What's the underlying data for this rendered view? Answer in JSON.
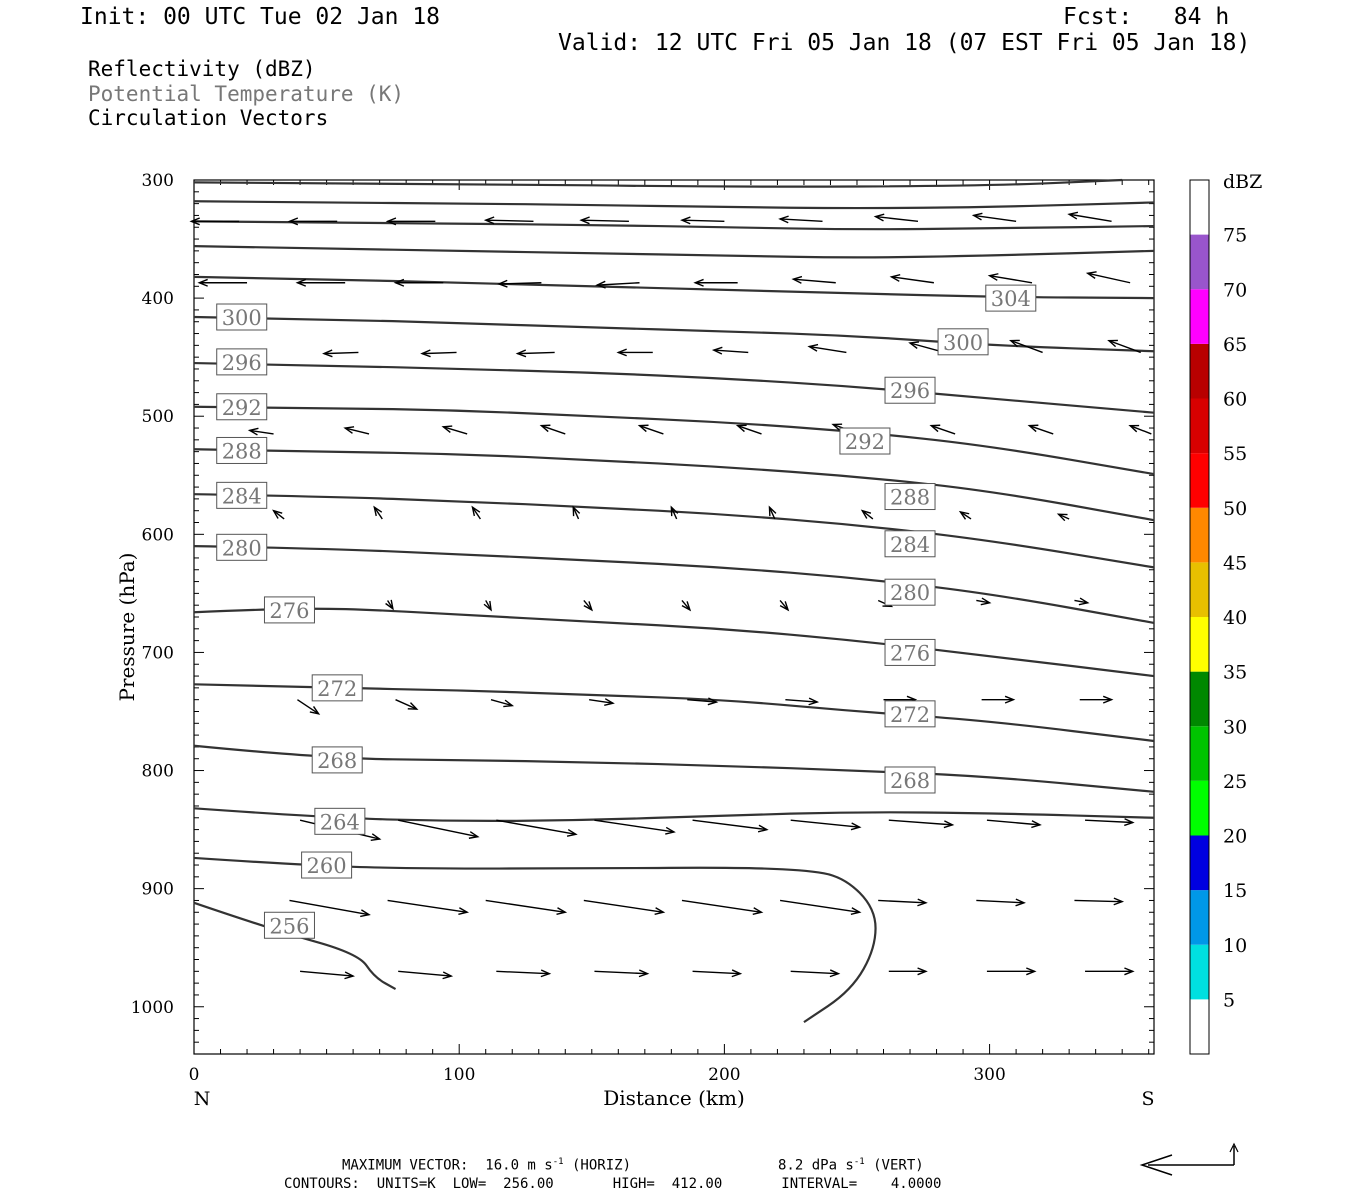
{
  "header": {
    "init": "Init: 00 UTC Tue 02 Jan 18",
    "fcst": "Fcst:   84 h",
    "valid": "Valid: 12 UTC Fri 05 Jan 18 (07 EST Fri 05 Jan 18)"
  },
  "fields": {
    "reflectivity": "Reflectivity (dBZ)",
    "theta": "Potential Temperature (K)",
    "vectors": "Circulation Vectors"
  },
  "footer": {
    "max_vector": "MAXIMUM VECTOR:  16.0 m s",
    "max_vector_sup": "-1",
    "horiz": " (HORIZ)",
    "vert_value": "8.2 dPa s",
    "vert_sup": "-1",
    "vert": " (VERT)",
    "contours": "CONTOURS:  UNITS=K  LOW=  256.00       HIGH=  412.00       INTERVAL=    4.0000"
  },
  "colors": {
    "contour": "#333333",
    "theta_label": "#777777",
    "axis": "#000000"
  },
  "chart_data": {
    "type": "line",
    "title": "",
    "xlabel": "Distance (km)",
    "ylabel": "Pressure (hPa)",
    "xlim": [
      0,
      362
    ],
    "ylim": [
      1040,
      300
    ],
    "x_ticks": [
      0,
      100,
      200,
      300
    ],
    "y_ticks": [
      300,
      400,
      500,
      600,
      700,
      800,
      900,
      1000
    ],
    "x_end_labels": {
      "left": "N",
      "right": "S"
    },
    "grid": false,
    "colorbar": {
      "unit": "dBZ",
      "labels": [
        "5",
        "10",
        "15",
        "20",
        "25",
        "30",
        "35",
        "40",
        "45",
        "50",
        "55",
        "60",
        "65",
        "70",
        "75"
      ],
      "colors": [
        "#00e0e0",
        "#0098e8",
        "#0000e0",
        "#00ff00",
        "#00c400",
        "#008800",
        "#ffff00",
        "#e8c000",
        "#ff8800",
        "#ff0000",
        "#d80000",
        "#b80000",
        "#ff00ff",
        "#9955cc"
      ]
    },
    "contours": [
      {
        "label": "256",
        "points": [
          [
            0,
            912
          ],
          [
            30,
            935
          ],
          [
            62,
            955
          ],
          [
            68,
            975
          ],
          [
            76,
            985
          ]
        ],
        "labels_at": [
          [
            36,
            931
          ]
        ]
      },
      {
        "label": "260",
        "points": [
          [
            0,
            874
          ],
          [
            40,
            880
          ],
          [
            80,
            883
          ],
          [
            150,
            883
          ],
          [
            200,
            882
          ],
          [
            230,
            884
          ],
          [
            245,
            890
          ],
          [
            257,
            917
          ],
          [
            257,
            950
          ],
          [
            248,
            986
          ],
          [
            230,
            1013
          ]
        ],
        "labels_at": [
          [
            50,
            880
          ]
        ]
      },
      {
        "label": "264",
        "points": [
          [
            0,
            832
          ],
          [
            50,
            840
          ],
          [
            100,
            843
          ],
          [
            150,
            842
          ],
          [
            200,
            838
          ],
          [
            250,
            835
          ],
          [
            300,
            836
          ],
          [
            362,
            840
          ]
        ],
        "labels_at": [
          [
            55,
            843
          ]
        ]
      },
      {
        "label": "268",
        "points": [
          [
            0,
            779
          ],
          [
            50,
            790
          ],
          [
            100,
            791
          ],
          [
            150,
            793
          ],
          [
            200,
            796
          ],
          [
            250,
            800
          ],
          [
            300,
            805
          ],
          [
            362,
            818
          ]
        ],
        "labels_at": [
          [
            54,
            791
          ],
          [
            270,
            808
          ]
        ]
      },
      {
        "label": "272",
        "points": [
          [
            0,
            727
          ],
          [
            50,
            730
          ],
          [
            100,
            732
          ],
          [
            150,
            736
          ],
          [
            200,
            740
          ],
          [
            250,
            750
          ],
          [
            300,
            758
          ],
          [
            362,
            775
          ]
        ],
        "labels_at": [
          [
            54,
            730
          ],
          [
            270,
            752
          ]
        ]
      },
      {
        "label": "276",
        "points": [
          [
            0,
            666
          ],
          [
            30,
            663
          ],
          [
            60,
            663
          ],
          [
            100,
            668
          ],
          [
            150,
            674
          ],
          [
            200,
            680
          ],
          [
            250,
            690
          ],
          [
            300,
            703
          ],
          [
            362,
            720
          ]
        ],
        "labels_at": [
          [
            36,
            664
          ],
          [
            270,
            700
          ]
        ]
      },
      {
        "label": "280",
        "points": [
          [
            0,
            610
          ],
          [
            50,
            612
          ],
          [
            100,
            617
          ],
          [
            150,
            622
          ],
          [
            200,
            628
          ],
          [
            250,
            637
          ],
          [
            300,
            650
          ],
          [
            362,
            675
          ]
        ],
        "labels_at": [
          [
            18,
            611
          ],
          [
            270,
            649
          ]
        ]
      },
      {
        "label": "284",
        "points": [
          [
            0,
            566
          ],
          [
            50,
            568
          ],
          [
            100,
            572
          ],
          [
            150,
            577
          ],
          [
            200,
            583
          ],
          [
            250,
            592
          ],
          [
            300,
            605
          ],
          [
            362,
            628
          ]
        ],
        "labels_at": [
          [
            18,
            567
          ],
          [
            270,
            608
          ]
        ]
      },
      {
        "label": "288",
        "points": [
          [
            0,
            528
          ],
          [
            50,
            530
          ],
          [
            100,
            532
          ],
          [
            150,
            537
          ],
          [
            200,
            543
          ],
          [
            250,
            551
          ],
          [
            300,
            563
          ],
          [
            362,
            588
          ]
        ],
        "labels_at": [
          [
            18,
            529
          ],
          [
            270,
            568
          ]
        ]
      },
      {
        "label": "292",
        "points": [
          [
            0,
            492
          ],
          [
            50,
            493
          ],
          [
            100,
            495
          ],
          [
            150,
            500
          ],
          [
            200,
            505
          ],
          [
            250,
            513
          ],
          [
            300,
            525
          ],
          [
            362,
            549
          ]
        ],
        "labels_at": [
          [
            18,
            492
          ],
          [
            253,
            521
          ]
        ]
      },
      {
        "label": "296",
        "points": [
          [
            0,
            455
          ],
          [
            50,
            457
          ],
          [
            100,
            460
          ],
          [
            150,
            463
          ],
          [
            200,
            468
          ],
          [
            250,
            475
          ],
          [
            300,
            485
          ],
          [
            362,
            497
          ]
        ],
        "labels_at": [
          [
            18,
            454
          ],
          [
            270,
            478
          ]
        ]
      },
      {
        "label": "300",
        "points": [
          [
            0,
            416
          ],
          [
            50,
            418
          ],
          [
            100,
            421
          ],
          [
            150,
            425
          ],
          [
            200,
            428
          ],
          [
            250,
            432
          ],
          [
            300,
            440
          ],
          [
            362,
            445
          ]
        ],
        "labels_at": [
          [
            18,
            416
          ],
          [
            290,
            437
          ]
        ]
      },
      {
        "label": "304",
        "points": [
          [
            0,
            382
          ],
          [
            50,
            384
          ],
          [
            100,
            387
          ],
          [
            150,
            390
          ],
          [
            200,
            393
          ],
          [
            250,
            396
          ],
          [
            300,
            399
          ],
          [
            362,
            400
          ]
        ],
        "labels_at": [
          [
            308,
            400
          ]
        ]
      },
      {
        "label": "",
        "points": [
          [
            0,
            356
          ],
          [
            50,
            358
          ],
          [
            100,
            360
          ],
          [
            150,
            362
          ],
          [
            200,
            364
          ],
          [
            250,
            366
          ],
          [
            300,
            364
          ],
          [
            362,
            360
          ]
        ],
        "labels_at": []
      },
      {
        "label": "",
        "points": [
          [
            0,
            335
          ],
          [
            50,
            336
          ],
          [
            100,
            337
          ],
          [
            150,
            338
          ],
          [
            200,
            340
          ],
          [
            250,
            342
          ],
          [
            300,
            341
          ],
          [
            362,
            339
          ]
        ],
        "labels_at": []
      },
      {
        "label": "",
        "points": [
          [
            0,
            318
          ],
          [
            50,
            319
          ],
          [
            100,
            320
          ],
          [
            150,
            321
          ],
          [
            200,
            323
          ],
          [
            250,
            324
          ],
          [
            300,
            323
          ],
          [
            362,
            319
          ]
        ],
        "labels_at": []
      },
      {
        "label": "",
        "points": [
          [
            0,
            302
          ],
          [
            100,
            303
          ],
          [
            200,
            306
          ],
          [
            300,
            305
          ],
          [
            350,
            300
          ]
        ],
        "labels_at": []
      }
    ],
    "vectors": {
      "units": "horizontal km, vertical hPa",
      "rows": [
        {
          "p": 335,
          "x": [
            17,
            54,
            91,
            128,
            164,
            200,
            237,
            273,
            310,
            346
          ],
          "dx": [
            -18,
            -18,
            -18,
            -18,
            -18,
            -16,
            -16,
            -16,
            -16,
            -16
          ],
          "dp": [
            0,
            0,
            0,
            -1,
            -1,
            -1,
            -2,
            -4,
            -5,
            -6
          ]
        },
        {
          "p": 387,
          "x": [
            20,
            57,
            94,
            131,
            168,
            205,
            242,
            279,
            316,
            353
          ],
          "dx": [
            -18,
            -18,
            -18,
            -16,
            -16,
            -16,
            -16,
            -16,
            -16,
            -16
          ],
          "dp": [
            0,
            0,
            0,
            1,
            2,
            0,
            -3,
            -5,
            -6,
            -8
          ]
        },
        {
          "p": 446,
          "x": [
            25,
            62,
            99,
            136,
            173,
            209,
            246,
            283,
            320,
            357
          ],
          "dx": [
            -9,
            -13,
            -13,
            -14,
            -13,
            -13,
            -14,
            -13,
            -12,
            -12
          ],
          "dp": [
            0,
            1,
            1,
            1,
            0,
            -2,
            -5,
            -8,
            -10,
            -10
          ]
        },
        {
          "p": 515,
          "x": [
            30,
            66,
            103,
            140,
            177,
            214,
            251,
            287,
            324,
            361
          ],
          "dx": [
            -9,
            -9,
            -9,
            -9,
            -9,
            -9,
            -10,
            -9,
            -9,
            -8
          ],
          "dp": [
            -3,
            -5,
            -6,
            -7,
            -7,
            -7,
            -8,
            -7,
            -7,
            -7
          ]
        },
        {
          "p": 587,
          "x": [
            34,
            71,
            108,
            145,
            182,
            219,
            256,
            293,
            330,
            366
          ],
          "dx": [
            -4,
            -3,
            -3,
            -2,
            -2,
            -2,
            -4,
            -4,
            -4,
            -4
          ],
          "dp": [
            -7,
            -10,
            -10,
            -10,
            -10,
            -10,
            -7,
            -6,
            -4,
            -4
          ]
        },
        {
          "p": 656,
          "x": [
            36,
            73,
            110,
            147,
            184,
            221,
            258,
            295,
            332,
            369
          ],
          "dx": [
            2,
            2,
            2,
            3,
            3,
            3,
            5,
            5,
            5,
            4
          ],
          "dp": [
            5,
            7,
            8,
            8,
            8,
            8,
            5,
            2,
            2,
            2
          ]
        },
        {
          "p": 740,
          "x": [
            39,
            76,
            112,
            149,
            186,
            223,
            260,
            297,
            334,
            371
          ],
          "dx": [
            8,
            8,
            8,
            9,
            11,
            12,
            12,
            12,
            12,
            12
          ],
          "dp": [
            12,
            8,
            5,
            3,
            2,
            2,
            0,
            0,
            0,
            0
          ]
        },
        {
          "p": 842,
          "x": [
            40,
            77,
            114,
            151,
            188,
            225,
            262,
            299,
            336,
            373
          ],
          "dx": [
            30,
            30,
            30,
            30,
            28,
            26,
            24,
            20,
            18,
            18
          ],
          "dp": [
            16,
            14,
            12,
            10,
            8,
            6,
            4,
            4,
            2,
            2
          ]
        },
        {
          "p": 910,
          "x": [
            36,
            73,
            110,
            147,
            184,
            221,
            258,
            295,
            332,
            369
          ],
          "dx": [
            30,
            30,
            30,
            30,
            30,
            30,
            18,
            18,
            18,
            18
          ],
          "dp": [
            12,
            10,
            10,
            10,
            10,
            10,
            2,
            2,
            1,
            1
          ]
        },
        {
          "p": 970,
          "x": [
            40,
            77,
            114,
            151,
            188,
            225,
            262,
            299,
            336,
            373
          ],
          "dx": [
            20,
            20,
            20,
            20,
            18,
            18,
            14,
            18,
            18,
            18
          ],
          "dp": [
            4,
            4,
            2,
            2,
            2,
            2,
            0,
            0,
            0,
            0
          ]
        }
      ]
    }
  }
}
